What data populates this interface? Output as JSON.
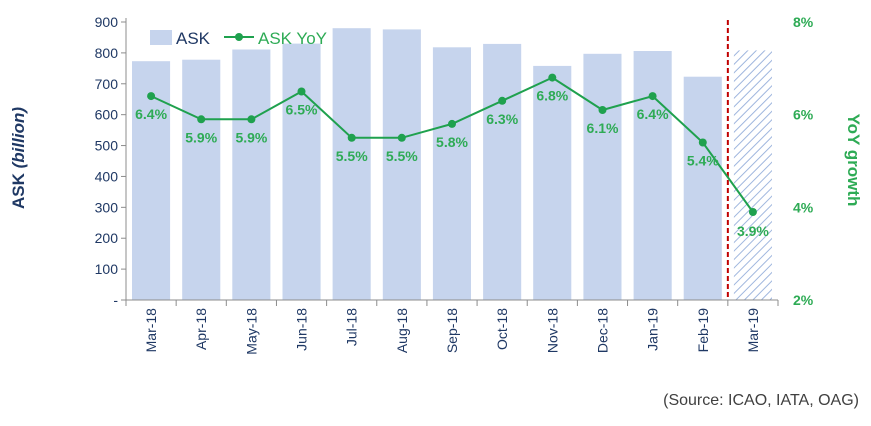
{
  "chart_data": {
    "type": "bar+line",
    "categories": [
      "Mar-18",
      "Apr-18",
      "May-18",
      "Jun-18",
      "Jul-18",
      "Aug-18",
      "Sep-18",
      "Oct-18",
      "Nov-18",
      "Dec-18",
      "Jan-19",
      "Feb-19",
      "Mar-19"
    ],
    "series": [
      {
        "name": "ASK",
        "type": "bar",
        "axis": "left",
        "values": [
          773,
          778,
          811,
          830,
          880,
          876,
          818,
          829,
          758,
          797,
          806,
          723,
          808
        ],
        "forecast_last": true
      },
      {
        "name": "ASK YoY",
        "type": "line",
        "axis": "right",
        "values": [
          6.4,
          5.9,
          5.9,
          6.5,
          5.5,
          5.5,
          5.8,
          6.3,
          6.8,
          6.1,
          6.4,
          5.4,
          3.9
        ],
        "labels": [
          "6.4%",
          "5.9%",
          "5.9%",
          "6.5%",
          "5.5%",
          "5.5%",
          "5.8%",
          "6.3%",
          "6.8%",
          "6.1%",
          "6.4%",
          "5.4%",
          "3.9%"
        ]
      }
    ],
    "ylabel_left_main": "ASK ",
    "ylabel_left_italic": "(billion)",
    "ylabel_right": "YoY growth",
    "ylim_left": [
      0,
      900
    ],
    "ylim_right": [
      2,
      8
    ],
    "left_ticks": [
      "-",
      "100",
      "200",
      "300",
      "400",
      "500",
      "600",
      "700",
      "800",
      "900"
    ],
    "right_ticks": [
      "2%",
      "4%",
      "6%",
      "8%"
    ],
    "legend": [
      "ASK",
      "ASK YoY"
    ],
    "legend_position": "top-left",
    "grid": false,
    "divider_after_category": "Feb-19",
    "colors": {
      "bar": "#c6d4ed",
      "forecast_hatch": "#9fb6de",
      "line": "#1fa14e",
      "left_axis": "#1f3864",
      "right_axis": "#2eab55",
      "divider": "#c00000"
    }
  },
  "source": "(Source: ICAO, IATA, OAG)"
}
